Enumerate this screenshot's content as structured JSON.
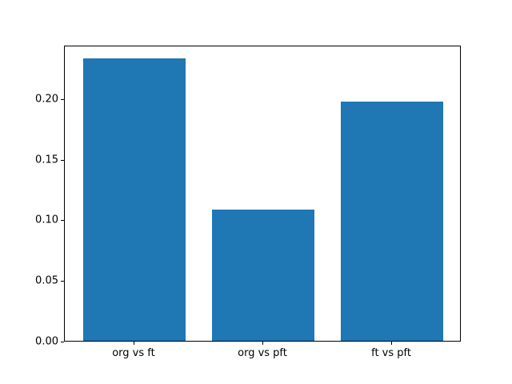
{
  "figure": {
    "background_color": "#ffffff",
    "frame_color": "#000000"
  },
  "chart_data": {
    "type": "bar",
    "title": "",
    "xlabel": "",
    "ylabel": "",
    "categories": [
      "org vs ft",
      "org vs pft",
      "ft vs pft"
    ],
    "values": [
      0.233,
      0.108,
      0.197
    ],
    "bar_color": "#1f77b4",
    "bar_width_fraction": 0.8,
    "ylim": [
      0,
      0.244
    ],
    "yticks": [
      0.0,
      0.05,
      0.1,
      0.15,
      0.2
    ],
    "ytick_labels": [
      "0.00",
      "0.05",
      "0.10",
      "0.15",
      "0.20"
    ],
    "grid": false,
    "legend": null
  }
}
